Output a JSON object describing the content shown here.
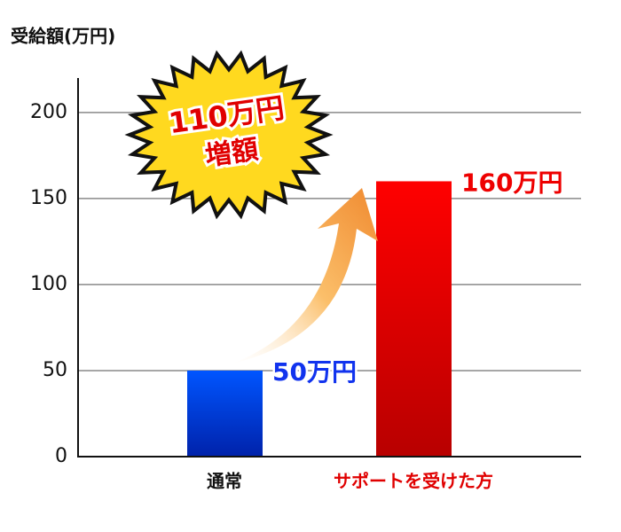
{
  "chart_data": {
    "type": "bar",
    "y_axis_label": "受給額(万円)",
    "categories": [
      "通常",
      "サポートを受けた方"
    ],
    "category_colors": [
      "#111111",
      "#e00000"
    ],
    "values": [
      50,
      160
    ],
    "value_labels": [
      "50万円",
      "160万円"
    ],
    "colors": [
      [
        "#0055ff",
        "#0022aa"
      ],
      [
        "#ff0000",
        "#b80000"
      ]
    ],
    "label_colors": [
      "#1133ee",
      "#ee0000"
    ],
    "annotations": [
      "110万円",
      "増額"
    ],
    "ylim": [
      0,
      220
    ],
    "yticks": [
      0,
      50,
      100,
      150,
      200
    ],
    "grid": true
  }
}
